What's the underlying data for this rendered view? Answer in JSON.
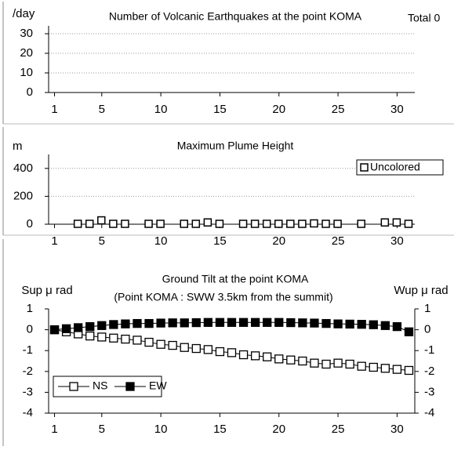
{
  "chart_data": [
    {
      "type": "bar",
      "title": "Number of Volcanic Earthquakes at the point KOMA",
      "y_label": "/day",
      "annotation": "Total 0",
      "x": [
        1,
        2,
        3,
        4,
        5,
        6,
        7,
        8,
        9,
        10,
        11,
        12,
        13,
        14,
        15,
        16,
        17,
        18,
        19,
        20,
        21,
        22,
        23,
        24,
        25,
        26,
        27,
        28,
        29,
        30,
        31
      ],
      "values": [
        0,
        0,
        0,
        0,
        0,
        0,
        0,
        0,
        0,
        0,
        0,
        0,
        0,
        0,
        0,
        0,
        0,
        0,
        0,
        0,
        0,
        0,
        0,
        0,
        0,
        0,
        0,
        0,
        0,
        0,
        0
      ],
      "color": "#000000",
      "xlim": [
        0.5,
        31.5
      ],
      "xticks": [
        1,
        5,
        10,
        15,
        20,
        25,
        30
      ],
      "ylim": [
        0,
        30
      ],
      "yticks": [
        0,
        10,
        20,
        30
      ],
      "grid": true
    },
    {
      "type": "scatter",
      "title": "Maximum Plume Height",
      "y_label": "m",
      "x": [
        1,
        2,
        3,
        4,
        5,
        6,
        7,
        8,
        9,
        10,
        11,
        12,
        13,
        14,
        15,
        16,
        17,
        18,
        19,
        20,
        21,
        22,
        23,
        24,
        25,
        26,
        27,
        28,
        29,
        30,
        31
      ],
      "series": [
        {
          "name": "Uncolored",
          "color": "#000000",
          "fill": "#ffffff",
          "values": [
            null,
            null,
            0,
            0,
            25,
            0,
            0,
            null,
            0,
            0,
            null,
            0,
            0,
            10,
            0,
            null,
            0,
            0,
            0,
            0,
            0,
            0,
            3,
            0,
            0,
            null,
            0,
            null,
            10,
            10,
            0
          ]
        }
      ],
      "xlim": [
        0.5,
        31.5
      ],
      "xticks": [
        1,
        5,
        10,
        15,
        20,
        25,
        30
      ],
      "ylim": [
        0,
        500
      ],
      "yticks": [
        0,
        200,
        400
      ],
      "grid": true,
      "legend": "top-right"
    },
    {
      "type": "line",
      "title": "Ground Tilt at the point KOMA",
      "subtitle": "(Point KOMA : SWW 3.5km from the summit)",
      "y_label": "Sup μ rad",
      "y2_label": "Wup μ rad",
      "x": [
        1,
        2,
        3,
        4,
        5,
        6,
        7,
        8,
        9,
        10,
        11,
        12,
        13,
        14,
        15,
        16,
        17,
        18,
        19,
        20,
        21,
        22,
        23,
        24,
        25,
        26,
        27,
        28,
        29,
        30,
        31
      ],
      "series": [
        {
          "name": "NS",
          "color": "#000000",
          "fill": "#ffffff",
          "values": [
            0,
            -0.1,
            -0.2,
            -0.3,
            -0.35,
            -0.4,
            -0.45,
            -0.5,
            -0.6,
            -0.7,
            -0.75,
            -0.85,
            -0.9,
            -0.95,
            -1.05,
            -1.1,
            -1.2,
            -1.25,
            -1.3,
            -1.4,
            -1.45,
            -1.5,
            -1.6,
            -1.65,
            -1.6,
            -1.65,
            -1.75,
            -1.8,
            -1.85,
            -1.9,
            -1.95
          ]
        },
        {
          "name": "EW",
          "color": "#000000",
          "fill": "#000000",
          "axis": "y2",
          "values": [
            0,
            0.05,
            0.1,
            0.15,
            0.2,
            0.25,
            0.28,
            0.3,
            0.3,
            0.32,
            0.33,
            0.33,
            0.34,
            0.35,
            0.35,
            0.35,
            0.35,
            0.35,
            0.35,
            0.35,
            0.34,
            0.33,
            0.32,
            0.3,
            0.28,
            0.27,
            0.26,
            0.24,
            0.2,
            0.15,
            -0.1
          ]
        }
      ],
      "xlim": [
        0.5,
        31.5
      ],
      "xticks": [
        1,
        5,
        10,
        15,
        20,
        25,
        30
      ],
      "ylim": [
        -4,
        1
      ],
      "yticks": [
        -4,
        -3,
        -2,
        -1,
        0,
        1
      ],
      "y2lim": [
        -4,
        1
      ],
      "y2ticks": [
        -4,
        -3,
        -2,
        -1,
        0,
        1
      ],
      "grid": false,
      "legend": "bottom-left"
    }
  ]
}
